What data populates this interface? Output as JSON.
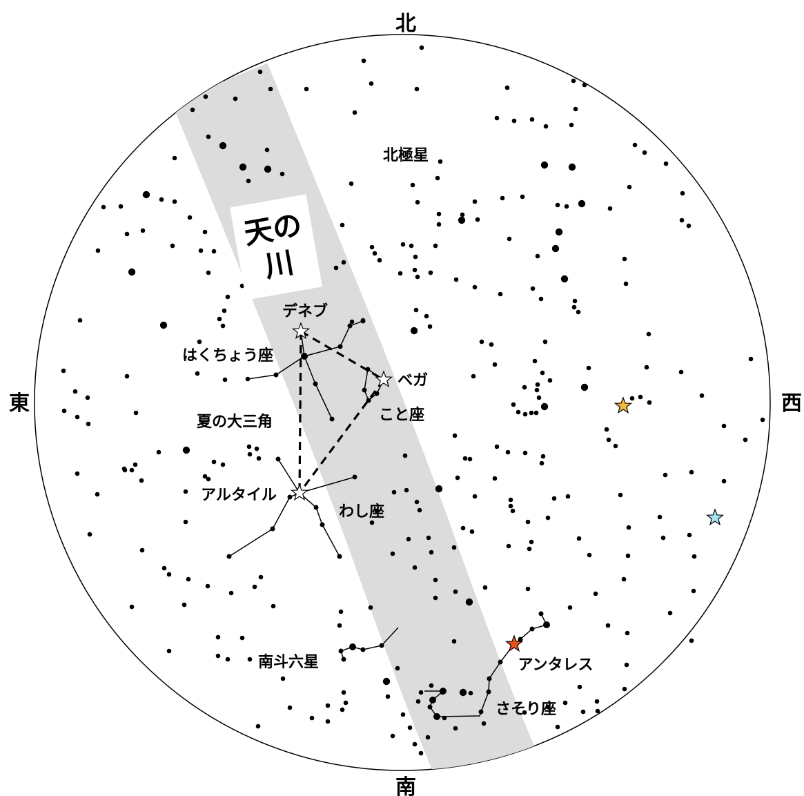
{
  "directions": {
    "north": "北",
    "south": "南",
    "east": "東",
    "west": "西"
  },
  "milky_way": {
    "label": "天の川"
  },
  "labels": {
    "polaris": "北極星",
    "deneb": "デネブ",
    "cygnus": "はくちょう座",
    "vega": "ベガ",
    "lyra": "こと座",
    "summer_triangle": "夏の大三角",
    "altair": "アルタイル",
    "aquila": "わし座",
    "nanto": "南斗六星",
    "antares": "アンタレス",
    "scorpius": "さそり座"
  },
  "colors": {
    "sky_background": "#ffffff",
    "milky_way_band": "#dcdcdc",
    "bright_star_outline": "#ffffff",
    "antares": "#e8501e",
    "arcturus_like_star": "#f5b942",
    "spica_like_star": "#a8e6ee"
  },
  "icons": {
    "bright_star": "star-outline-icon",
    "colored_star": "star-filled-icon"
  }
}
